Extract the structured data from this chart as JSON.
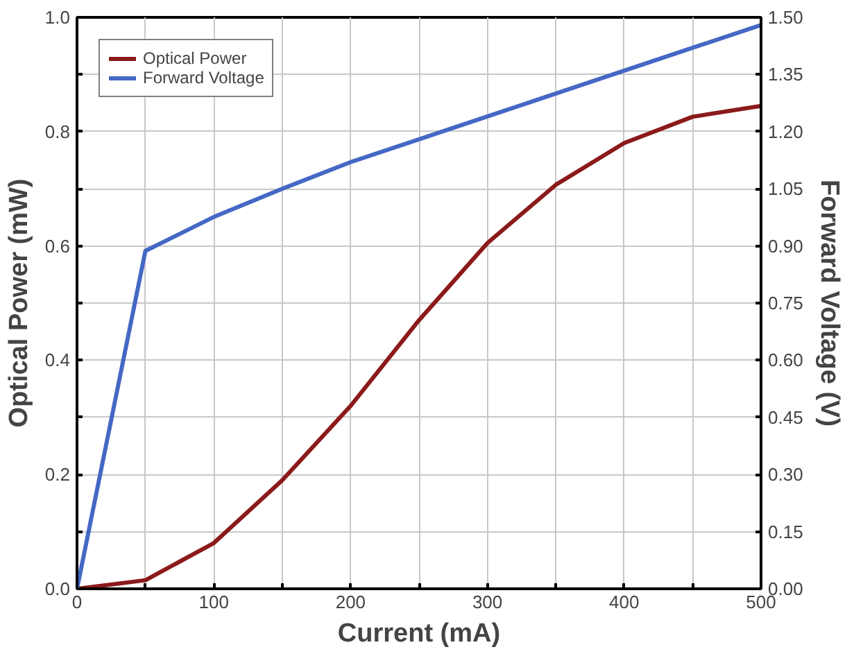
{
  "chart_data": {
    "type": "line",
    "xlabel": "Current (mA)",
    "ylabel": "Optical Power (mW)",
    "y2label": "Forward Voltage (V)",
    "x": [
      0,
      50,
      100,
      150,
      200,
      250,
      300,
      350,
      400,
      450,
      500
    ],
    "series": [
      {
        "name": "Optical Power",
        "color": "#8b1a1a",
        "values": [
          0.0,
          0.015,
          0.08,
          0.19,
          0.32,
          0.47,
          0.605,
          0.707,
          0.78,
          0.826,
          0.845
        ]
      },
      {
        "name": "Forward Voltage",
        "color": "#4468c4",
        "axis": "y2",
        "values": [
          0.0,
          0.887,
          0.976,
          1.05,
          1.12,
          1.18,
          1.24,
          1.3,
          1.36,
          1.42,
          1.48
        ]
      }
    ],
    "xlim": [
      0,
      500
    ],
    "xticks": [
      0,
      {
        "value": 50,
        "label": null
      },
      100,
      {
        "value": 150,
        "label": null
      },
      200,
      {
        "value": 250,
        "label": null
      },
      300,
      {
        "value": 350,
        "label": null
      },
      400,
      {
        "value": 450,
        "label": null
      },
      500
    ],
    "ylim": [
      0,
      1
    ],
    "yticks": [
      {
        "value": 0,
        "label": "0.0"
      },
      {
        "value": 0.1,
        "label": null
      },
      {
        "value": 0.2,
        "label": "0.2"
      },
      {
        "value": 0.3,
        "label": null
      },
      {
        "value": 0.4,
        "label": "0.4"
      },
      {
        "value": 0.5,
        "label": null
      },
      {
        "value": 0.6,
        "label": "0.6"
      },
      {
        "value": 0.7,
        "label": null
      },
      {
        "value": 0.8,
        "label": "0.8"
      },
      {
        "value": 0.9,
        "label": null
      },
      {
        "value": 1,
        "label": "1.0"
      }
    ],
    "y2lim": [
      0,
      1.5
    ],
    "y2ticks": [
      {
        "value": 0,
        "label": "0.00"
      },
      {
        "value": 0.15,
        "label": "0.15"
      },
      {
        "value": 0.3,
        "label": "0.30"
      },
      {
        "value": 0.45,
        "label": "0.45"
      },
      {
        "value": 0.6,
        "label": "0.60"
      },
      {
        "value": 0.75,
        "label": "0.75"
      },
      {
        "value": 0.9,
        "label": "0.90"
      },
      {
        "value": 1.05,
        "label": "1.05"
      },
      {
        "value": 1.2,
        "label": "1.20"
      },
      {
        "value": 1.35,
        "label": "1.35"
      },
      {
        "value": 1.5,
        "label": "1.50"
      }
    ],
    "grid": true,
    "legend": "top left",
    "marker": "none",
    "line_style": "solid"
  }
}
